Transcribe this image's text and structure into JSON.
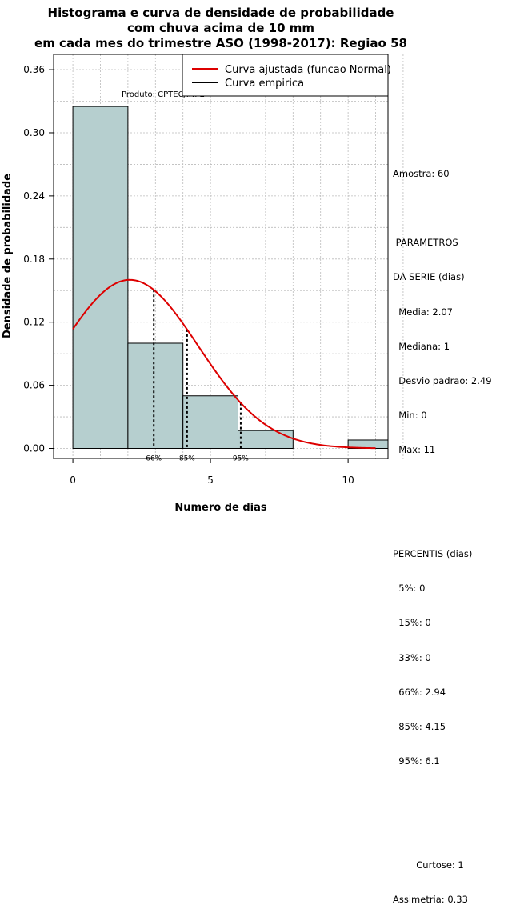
{
  "chart_data": {
    "type": "bar",
    "title": [
      "Histograma e curva de densidade de probabilidade",
      "com chuva acima de 10 mm",
      "em cada mes do trimestre ASO (1998-2017): Regiao 58"
    ],
    "xlabel": "Numero de dias",
    "ylabel": "Densidade de probabilidade",
    "xlim": [
      -0.7,
      11.45
    ],
    "ylim": [
      -0.0095,
      0.3745
    ],
    "xticks": [
      0,
      5,
      10
    ],
    "yticks": [
      0.0,
      0.06,
      0.12,
      0.18,
      0.24,
      0.3,
      0.36
    ],
    "ytick_labels": [
      "0.00",
      "0.06",
      "0.12",
      "0.18",
      "0.24",
      "0.30",
      "0.36"
    ],
    "bins": [
      {
        "from": 0,
        "to": 2,
        "density": 0.325
      },
      {
        "from": 2,
        "to": 4,
        "density": 0.1
      },
      {
        "from": 4,
        "to": 6,
        "density": 0.05
      },
      {
        "from": 6,
        "to": 8,
        "density": 0.017
      },
      {
        "from": 10,
        "to": 12,
        "density": 0.008
      }
    ],
    "fitted_normal": {
      "mean": 2.07,
      "sd": 2.49,
      "x_range": [
        0,
        11
      ],
      "color": "#dd0000"
    },
    "percentile_lines": [
      {
        "label": "66%",
        "x": 2.94
      },
      {
        "label": "85%",
        "x": 4.15
      },
      {
        "label": "95%",
        "x": 6.1
      }
    ],
    "legend": [
      {
        "label": "Curva ajustada (funcao Normal)",
        "color": "#dd0000"
      },
      {
        "label": "Curva empirica",
        "color": "#000000"
      }
    ],
    "bar_color": "#b6cfcf",
    "grid": true,
    "annotation": "Produto: CPTEC/INPE"
  },
  "stats_panel": {
    "amostra": "Amostra: 60",
    "param_title_1": " PARAMETROS",
    "param_title_2": "DA SERIE (dias)",
    "media": "  Media: 2.07",
    "mediana": "  Mediana: 1",
    "desvio": "  Desvio padrao: 2.49",
    "min": "  Min: 0",
    "max": "  Max: 11",
    "perc_title": "PERCENTIS (dias)",
    "p5": "  5%: 0",
    "p15": "  15%: 0",
    "p33": "  33%: 0",
    "p66": "  66%: 2.94",
    "p85": "  85%: 4.15",
    "p95": "  95%: 6.1",
    "curtose": "        Curtose: 1",
    "assimetria": "Assimetria: 0.33"
  }
}
